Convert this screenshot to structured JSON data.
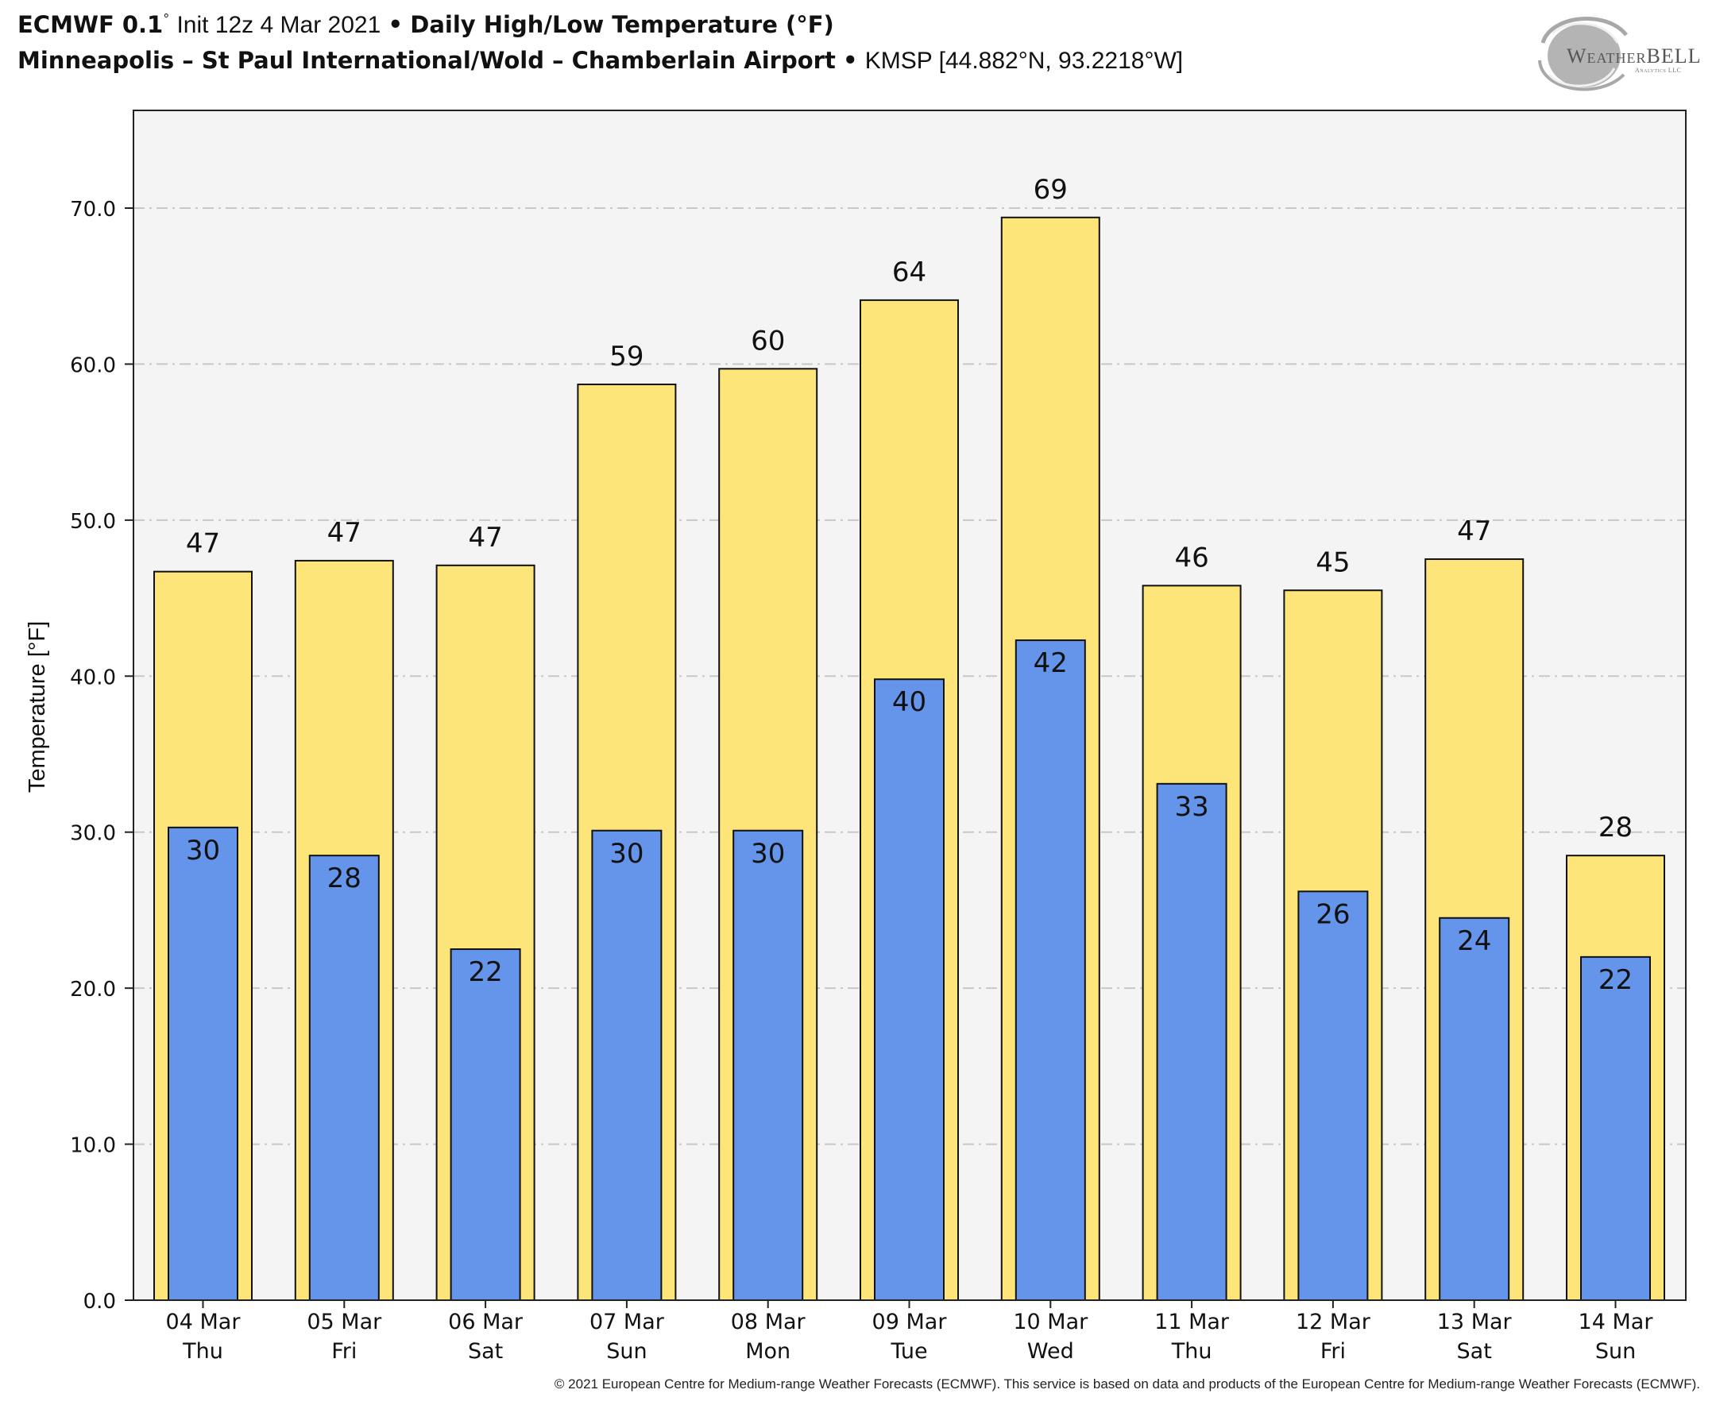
{
  "header": {
    "model": "ECMWF 0.1",
    "degree_mark": "°",
    "init": "Init 12z 4 Mar 2021",
    "separator": "•",
    "product": "Daily High/Low Temperature (°F)",
    "station_name": "Minneapolis – St Paul International/Wold – Chamberlain Airport",
    "station_code_coords": "KMSP [44.882°N, 93.2218°W]"
  },
  "logo": {
    "name": "WEATHERBELL",
    "first_part": "Weather",
    "second_part": "BELL",
    "subtitle": "Analytics LLC",
    "icon": "swirl-logo-icon"
  },
  "footer": {
    "copyright": "© 2021 European Centre for Medium-range Weather Forecasts (ECMWF). This service is based on data and products of the European Centre for Medium-range Weather Forecasts (ECMWF)."
  },
  "colors": {
    "high_bar": "#fde57a",
    "low_bar": "#6495ea",
    "plot_background": "#f4f4f4",
    "grid": "#c8c8c8",
    "edge": "#111111"
  },
  "chart_data": {
    "type": "bar",
    "title": "Daily High/Low Temperature (°F)",
    "xlabel": "",
    "ylabel": "Temperature [°F]",
    "ylim": [
      0,
      76
    ],
    "yticks": [
      0,
      10,
      20,
      30,
      40,
      50,
      60,
      70
    ],
    "ytick_labels": [
      "0.0",
      "10.0",
      "20.0",
      "30.0",
      "40.0",
      "50.0",
      "60.0",
      "70.0"
    ],
    "grid": true,
    "legend": "none",
    "categories": [
      "04 Mar",
      "05 Mar",
      "06 Mar",
      "07 Mar",
      "08 Mar",
      "09 Mar",
      "10 Mar",
      "11 Mar",
      "12 Mar",
      "13 Mar",
      "14 Mar"
    ],
    "weekdays": [
      "Thu",
      "Fri",
      "Sat",
      "Sun",
      "Mon",
      "Tue",
      "Wed",
      "Thu",
      "Fri",
      "Sat",
      "Sun"
    ],
    "series": [
      {
        "name": "High",
        "values": [
          46.7,
          47.4,
          47.1,
          58.7,
          59.7,
          64.1,
          69.4,
          45.8,
          45.5,
          47.5,
          28.5
        ],
        "labels": [
          "47",
          "47",
          "47",
          "59",
          "60",
          "64",
          "69",
          "46",
          "45",
          "47",
          "28"
        ]
      },
      {
        "name": "Low",
        "values": [
          30.3,
          28.5,
          22.5,
          30.1,
          30.1,
          39.8,
          42.3,
          33.1,
          26.2,
          24.5,
          22.0
        ],
        "labels": [
          "30",
          "28",
          "22",
          "30",
          "30",
          "40",
          "42",
          "33",
          "26",
          "24",
          "22"
        ]
      }
    ]
  }
}
